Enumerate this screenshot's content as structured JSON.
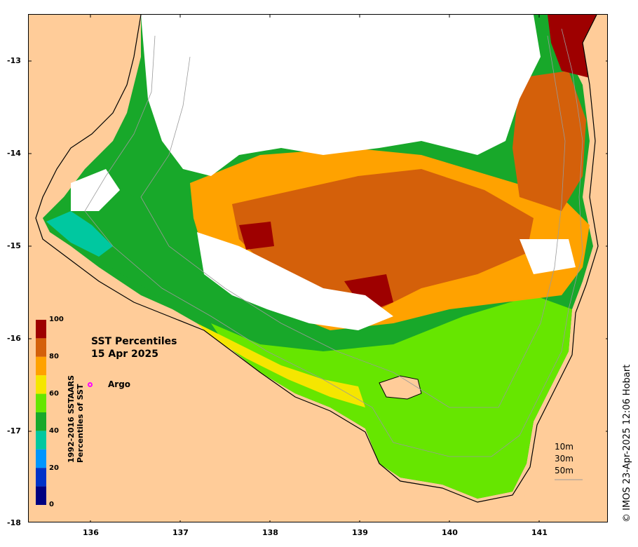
{
  "title_line1": "SST Percentiles",
  "title_line2": "15 Apr 2025",
  "argo_label": "Argo",
  "colorbar": {
    "title_line1": "1992-2016 SSTAARS",
    "title_line2": "Percentiles of SST",
    "labels": [
      "100",
      "80",
      "60",
      "40",
      "20",
      "0"
    ],
    "colors": [
      "#9e0000",
      "#d4600a",
      "#ffa200",
      "#f5e600",
      "#66e600",
      "#18a82a",
      "#00c8a0",
      "#0096ff",
      "#0032c8",
      "#000080"
    ]
  },
  "axis": {
    "x_ticks": [
      "136",
      "137",
      "138",
      "139",
      "140",
      "141"
    ],
    "y_ticks": [
      "-13",
      "-14",
      "-15",
      "-16",
      "-17",
      "-18"
    ]
  },
  "depth_labels": [
    "10m",
    "30m",
    "50m"
  ],
  "credit": "© IMOS 23-Apr-2025 12:06 Hobart",
  "colors": {
    "land": "#ffcc99",
    "cloud": "#ffffff"
  }
}
